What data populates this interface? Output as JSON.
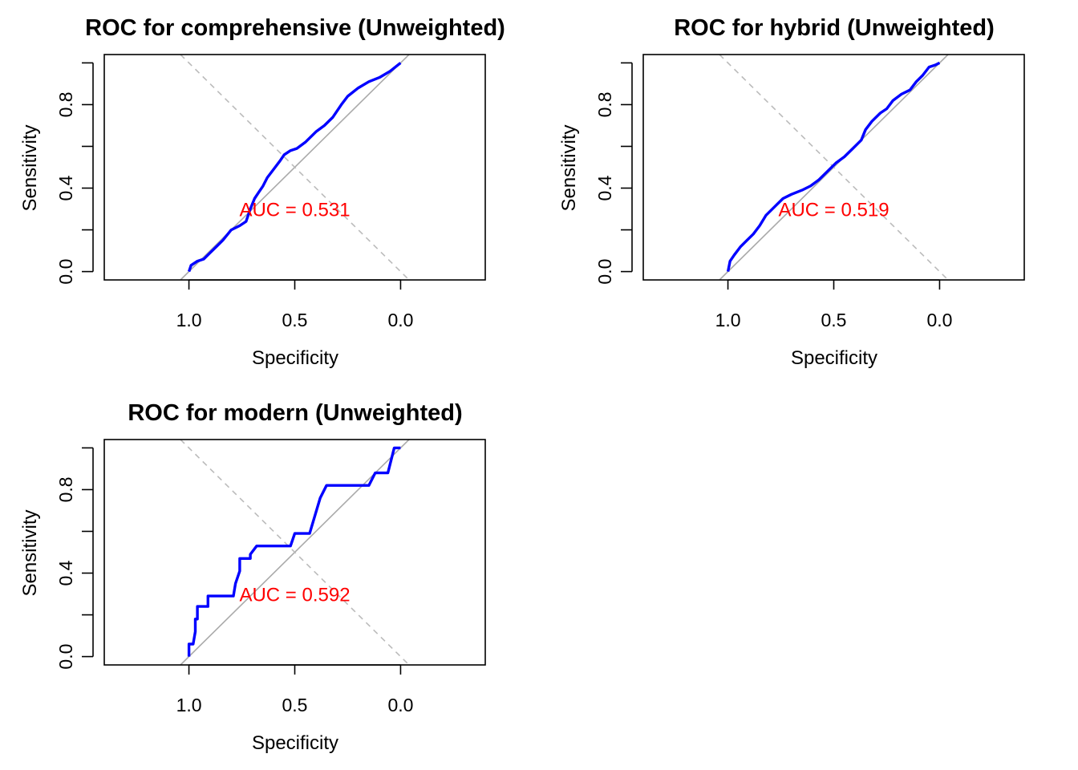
{
  "chart_data": [
    {
      "type": "line",
      "title": "ROC for comprehensive (Unweighted)",
      "xlabel": "Specificity",
      "ylabel": "Sensitivity",
      "xlim": [
        1.4,
        -0.4
      ],
      "ylim": [
        0,
        1
      ],
      "x_reversed": true,
      "xticks": [
        1.0,
        0.5,
        0.0
      ],
      "xtick_labels": [
        "1.0",
        "0.5",
        "0.0"
      ],
      "yticks": [
        0,
        0.2,
        0.4,
        0.6,
        0.8,
        1.0
      ],
      "ytick_labels": [
        "0.0",
        "",
        "0.4",
        "",
        "0.8",
        ""
      ],
      "annotation": "AUC = 0.531",
      "reference_line": "diagonal",
      "series": [
        {
          "color": "#0000ff",
          "specificity": [
            1.0,
            0.99,
            0.96,
            0.93,
            0.9,
            0.87,
            0.84,
            0.8,
            0.76,
            0.73,
            0.71,
            0.69,
            0.67,
            0.65,
            0.63,
            0.6,
            0.57,
            0.55,
            0.52,
            0.49,
            0.45,
            0.4,
            0.36,
            0.32,
            0.28,
            0.25,
            0.2,
            0.15,
            0.1,
            0.05,
            0.0
          ],
          "sensitivity": [
            0.0,
            0.03,
            0.05,
            0.06,
            0.09,
            0.12,
            0.15,
            0.2,
            0.22,
            0.24,
            0.3,
            0.35,
            0.38,
            0.41,
            0.45,
            0.49,
            0.53,
            0.56,
            0.58,
            0.59,
            0.62,
            0.67,
            0.7,
            0.74,
            0.8,
            0.84,
            0.88,
            0.91,
            0.93,
            0.96,
            1.0
          ]
        }
      ]
    },
    {
      "type": "line",
      "title": "ROC for hybrid (Unweighted)",
      "xlabel": "Specificity",
      "ylabel": "Sensitivity",
      "xlim": [
        1.4,
        -0.4
      ],
      "ylim": [
        0,
        1
      ],
      "x_reversed": true,
      "xticks": [
        1.0,
        0.5,
        0.0
      ],
      "xtick_labels": [
        "1.0",
        "0.5",
        "0.0"
      ],
      "yticks": [
        0,
        0.2,
        0.4,
        0.6,
        0.8,
        1.0
      ],
      "ytick_labels": [
        "0.0",
        "",
        "0.4",
        "",
        "0.8",
        ""
      ],
      "annotation": "AUC = 0.519",
      "reference_line": "diagonal",
      "series": [
        {
          "color": "#0000ff",
          "specificity": [
            1.0,
            0.99,
            0.97,
            0.94,
            0.91,
            0.88,
            0.85,
            0.82,
            0.78,
            0.74,
            0.7,
            0.65,
            0.61,
            0.57,
            0.53,
            0.49,
            0.45,
            0.41,
            0.37,
            0.35,
            0.32,
            0.28,
            0.25,
            0.22,
            0.18,
            0.14,
            0.11,
            0.08,
            0.05,
            0.02,
            0.0
          ],
          "sensitivity": [
            0.0,
            0.05,
            0.08,
            0.12,
            0.15,
            0.18,
            0.22,
            0.27,
            0.31,
            0.35,
            0.37,
            0.39,
            0.41,
            0.44,
            0.48,
            0.52,
            0.55,
            0.59,
            0.63,
            0.68,
            0.72,
            0.76,
            0.78,
            0.82,
            0.85,
            0.87,
            0.91,
            0.94,
            0.98,
            0.99,
            1.0
          ]
        }
      ]
    },
    {
      "type": "line",
      "title": "ROC for modern (Unweighted)",
      "xlabel": "Specificity",
      "ylabel": "Sensitivity",
      "xlim": [
        1.4,
        -0.4
      ],
      "ylim": [
        0,
        1
      ],
      "x_reversed": true,
      "xticks": [
        1.0,
        0.5,
        0.0
      ],
      "xtick_labels": [
        "1.0",
        "0.5",
        "0.0"
      ],
      "yticks": [
        0,
        0.2,
        0.4,
        0.6,
        0.8,
        1.0
      ],
      "ytick_labels": [
        "0.0",
        "",
        "0.4",
        "",
        "0.8",
        ""
      ],
      "annotation": "AUC = 0.592",
      "reference_line": "diagonal",
      "series": [
        {
          "color": "#0000ff",
          "specificity": [
            1.0,
            1.0,
            0.98,
            0.97,
            0.97,
            0.96,
            0.96,
            0.91,
            0.91,
            0.79,
            0.78,
            0.76,
            0.76,
            0.71,
            0.71,
            0.68,
            0.52,
            0.5,
            0.43,
            0.38,
            0.35,
            0.15,
            0.12,
            0.06,
            0.03,
            0.0
          ],
          "sensitivity": [
            0.0,
            0.06,
            0.06,
            0.12,
            0.18,
            0.18,
            0.24,
            0.24,
            0.29,
            0.29,
            0.35,
            0.41,
            0.47,
            0.47,
            0.49,
            0.53,
            0.53,
            0.59,
            0.59,
            0.76,
            0.82,
            0.82,
            0.88,
            0.88,
            1.0,
            1.0
          ]
        }
      ]
    }
  ]
}
